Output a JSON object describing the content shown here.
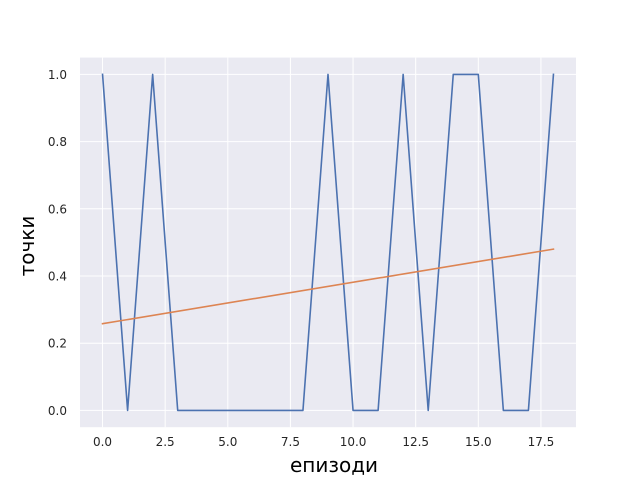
{
  "chart_data": {
    "type": "line",
    "title": "",
    "xlabel": "епизоди",
    "ylabel": "точки",
    "xlim": [
      -0.9,
      18.9
    ],
    "ylim": [
      -0.05,
      1.05
    ],
    "grid": true,
    "legend": "none",
    "style": {
      "background": "#EAEAF2",
      "grid_color": "#FFFFFF"
    },
    "xticks": [
      0.0,
      2.5,
      5.0,
      7.5,
      10.0,
      12.5,
      15.0,
      17.5
    ],
    "xtick_labels": [
      "0.0",
      "2.5",
      "5.0",
      "7.5",
      "10.0",
      "12.5",
      "15.0",
      "17.5"
    ],
    "yticks": [
      0.0,
      0.2,
      0.4,
      0.6,
      0.8,
      1.0
    ],
    "ytick_labels": [
      "0.0",
      "0.2",
      "0.4",
      "0.6",
      "0.8",
      "1.0"
    ],
    "series": [
      {
        "color": "#4C72B0",
        "x": [
          0,
          1,
          2,
          3,
          4,
          5,
          6,
          7,
          8,
          9,
          10,
          11,
          12,
          13,
          14,
          15,
          16,
          17,
          18
        ],
        "y": [
          1,
          0,
          1,
          0,
          0,
          0,
          0,
          0,
          0,
          1,
          0,
          0,
          1,
          0,
          1,
          1,
          0,
          0,
          1
        ]
      },
      {
        "color": "#DD8452",
        "x": [
          0,
          18
        ],
        "y": [
          0.258,
          0.48
        ]
      }
    ]
  }
}
